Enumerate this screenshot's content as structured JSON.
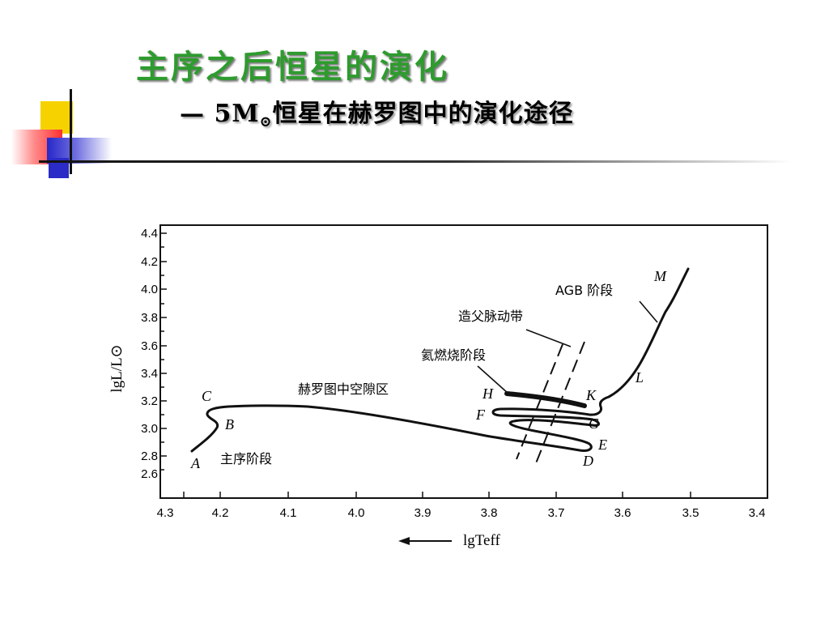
{
  "slide": {
    "title": "主序之后恒星的演化",
    "subtitle_prefix": "— 5M",
    "subtitle_symbol": "⊙",
    "subtitle_suffix": "恒星在赫罗图中的演化途径"
  },
  "diagram": {
    "y_axis": {
      "label": "lgL/L⊙",
      "ticks": [
        "4.4",
        "4.2",
        "4.0",
        "3.8",
        "3.6",
        "3.4",
        "3.2",
        "3.0",
        "2.8",
        "2.6"
      ]
    },
    "x_axis": {
      "label": "lgTeff",
      "ticks": [
        "4.3",
        "4.2",
        "4.1",
        "4.0",
        "3.9",
        "3.8",
        "3.7",
        "3.6",
        "3.5",
        "3.4"
      ]
    },
    "points": {
      "A": "A",
      "B": "B",
      "C": "C",
      "D": "D",
      "E": "E",
      "F": "F",
      "G": "G",
      "H": "H",
      "K": "K",
      "L": "L",
      "M": "M"
    },
    "labels": {
      "main_sequence": "主序阶段",
      "hertzsprung_gap": "赫罗图中空隙区",
      "helium_burning": "氦燃烧阶段",
      "cepheid_strip": "造父脉动带",
      "agb": "AGB 阶段"
    }
  },
  "colors": {
    "title": "#2e9b2e",
    "accent_yellow": "#f6d200",
    "accent_red": "#ff3030",
    "accent_blue": "#2b2bc8"
  }
}
